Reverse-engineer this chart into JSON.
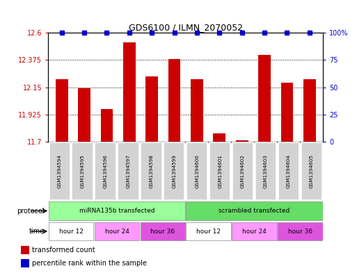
{
  "title": "GDS6100 / ILMN_2070052",
  "samples": [
    "GSM1394594",
    "GSM1394595",
    "GSM1394596",
    "GSM1394597",
    "GSM1394598",
    "GSM1394599",
    "GSM1394600",
    "GSM1394601",
    "GSM1394602",
    "GSM1394603",
    "GSM1394604",
    "GSM1394605"
  ],
  "bar_values": [
    12.22,
    12.145,
    11.97,
    12.52,
    12.24,
    12.385,
    12.22,
    11.77,
    11.715,
    12.42,
    12.19,
    12.22
  ],
  "percentile_values": [
    100,
    100,
    100,
    100,
    100,
    100,
    100,
    100,
    100,
    100,
    100,
    100
  ],
  "bar_color": "#cc0000",
  "dot_color": "#0000cc",
  "ylim_left": [
    11.7,
    12.6
  ],
  "ylim_right": [
    0,
    100
  ],
  "yticks_left": [
    11.7,
    11.925,
    12.15,
    12.375,
    12.6
  ],
  "yticks_right": [
    0,
    25,
    50,
    75,
    100
  ],
  "ytick_labels_left": [
    "11.7",
    "11.925",
    "12.15",
    "12.375",
    "12.6"
  ],
  "ytick_labels_right": [
    "0",
    "25",
    "50",
    "75",
    "100%"
  ],
  "background_color": "#ffffff",
  "protocol_groups": [
    {
      "label": "miRNA135b transfected",
      "start": 0,
      "end": 6,
      "color": "#99ff99"
    },
    {
      "label": "scrambled transfected",
      "start": 6,
      "end": 12,
      "color": "#66dd66"
    }
  ],
  "time_groups": [
    {
      "label": "hour 12",
      "start": 0,
      "end": 2,
      "color": "#ffffff"
    },
    {
      "label": "hour 24",
      "start": 2,
      "end": 4,
      "color": "#ff99ff"
    },
    {
      "label": "hour 36",
      "start": 4,
      "end": 6,
      "color": "#dd55dd"
    },
    {
      "label": "hour 12",
      "start": 6,
      "end": 8,
      "color": "#ffffff"
    },
    {
      "label": "hour 24",
      "start": 8,
      "end": 10,
      "color": "#ff99ff"
    },
    {
      "label": "hour 36",
      "start": 10,
      "end": 12,
      "color": "#dd55dd"
    }
  ],
  "sample_box_color": "#d3d3d3",
  "bar_width": 0.55
}
